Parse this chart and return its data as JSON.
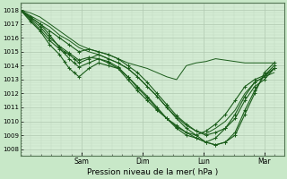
{
  "xlabel": "Pression niveau de la mer( hPa )",
  "background_color": "#c8e8c8",
  "plot_bg_color": "#d4ecd4",
  "grid_major_color": "#b0c8b0",
  "grid_minor_color": "#c0d8c0",
  "line_color": "#1a5c1a",
  "ylim": [
    1007.5,
    1018.5
  ],
  "ytick_labels": [
    1008,
    1009,
    1010,
    1011,
    1012,
    1013,
    1014,
    1015,
    1016,
    1017,
    1018
  ],
  "day_labels": [
    "Sam",
    "Dim",
    "Lun",
    "Mar"
  ],
  "day_positions": [
    0.25,
    0.5,
    0.75,
    1.0
  ],
  "xlim": [
    0.0,
    1.08
  ],
  "lines": [
    {
      "x": [
        0.0,
        0.04,
        0.08,
        0.12,
        0.16,
        0.18,
        0.2,
        0.22,
        0.24,
        0.28,
        0.32,
        0.36,
        0.4,
        0.44,
        0.48,
        0.52,
        0.56,
        0.6,
        0.64,
        0.68,
        0.72,
        0.76,
        0.8,
        0.84,
        0.88,
        0.92,
        0.96,
        1.0,
        1.04
      ],
      "y": [
        1018.0,
        1017.5,
        1017.0,
        1016.2,
        1015.3,
        1015.0,
        1014.8,
        1014.5,
        1014.2,
        1014.5,
        1014.8,
        1014.5,
        1014.2,
        1013.8,
        1013.2,
        1012.5,
        1011.8,
        1011.0,
        1010.2,
        1009.5,
        1009.0,
        1008.5,
        1008.3,
        1008.5,
        1009.0,
        1010.5,
        1012.0,
        1013.5,
        1014.2
      ],
      "marker": true,
      "lw": 0.8
    },
    {
      "x": [
        0.0,
        0.04,
        0.08,
        0.12,
        0.16,
        0.18,
        0.2,
        0.22,
        0.24,
        0.28,
        0.32,
        0.36,
        0.4,
        0.44,
        0.48,
        0.52,
        0.56,
        0.6,
        0.64,
        0.68,
        0.72,
        0.76,
        0.8,
        0.84,
        0.88,
        0.92,
        0.96,
        1.0,
        1.04
      ],
      "y": [
        1018.0,
        1017.2,
        1016.5,
        1015.5,
        1014.8,
        1014.3,
        1013.8,
        1013.5,
        1013.2,
        1013.8,
        1014.2,
        1014.0,
        1013.8,
        1013.2,
        1012.5,
        1011.8,
        1011.0,
        1010.2,
        1009.5,
        1009.0,
        1008.8,
        1008.5,
        1008.3,
        1008.5,
        1009.2,
        1010.8,
        1012.2,
        1013.3,
        1014.0
      ],
      "marker": true,
      "lw": 0.8
    },
    {
      "x": [
        0.0,
        0.04,
        0.08,
        0.12,
        0.16,
        0.2,
        0.24,
        0.28,
        0.32,
        0.36,
        0.4,
        0.44,
        0.48,
        0.52,
        0.56,
        0.6,
        0.64,
        0.68,
        0.72,
        0.76,
        0.8,
        0.84,
        0.88,
        0.92,
        0.96,
        1.0,
        1.04
      ],
      "y": [
        1018.0,
        1017.5,
        1017.0,
        1016.5,
        1016.0,
        1015.5,
        1015.0,
        1015.2,
        1015.0,
        1014.8,
        1014.5,
        1014.0,
        1013.5,
        1012.8,
        1012.0,
        1011.2,
        1010.4,
        1009.8,
        1009.3,
        1009.0,
        1009.2,
        1009.5,
        1010.2,
        1011.5,
        1012.5,
        1013.0,
        1013.8
      ],
      "marker": true,
      "lw": 0.8
    },
    {
      "x": [
        0.0,
        0.04,
        0.08,
        0.12,
        0.16,
        0.2,
        0.24,
        0.28,
        0.32,
        0.36,
        0.4,
        0.44,
        0.48,
        0.52,
        0.56,
        0.6,
        0.64,
        0.68,
        0.72,
        0.76,
        0.8,
        0.84,
        0.88,
        0.92,
        0.96,
        1.0,
        1.04
      ],
      "y": [
        1018.0,
        1017.8,
        1017.5,
        1017.0,
        1016.5,
        1016.0,
        1015.5,
        1015.2,
        1015.0,
        1014.8,
        1014.5,
        1014.2,
        1014.0,
        1013.8,
        1013.5,
        1013.2,
        1013.0,
        1014.0,
        1014.2,
        1014.3,
        1014.5,
        1014.4,
        1014.3,
        1014.2,
        1014.2,
        1014.2,
        1014.2
      ],
      "marker": false,
      "lw": 0.7
    },
    {
      "x": [
        0.0,
        0.04,
        0.08,
        0.12,
        0.16,
        0.2,
        0.24,
        0.28,
        0.32,
        0.36,
        0.4,
        0.44,
        0.48,
        0.52,
        0.56,
        0.6,
        0.64,
        0.68,
        0.72,
        0.76,
        0.8,
        0.84,
        0.88,
        0.92,
        0.96,
        1.0,
        1.04
      ],
      "y": [
        1018.0,
        1017.6,
        1017.2,
        1016.8,
        1016.2,
        1015.8,
        1015.3,
        1015.0,
        1014.8,
        1014.5,
        1014.2,
        1013.8,
        1013.2,
        1012.5,
        1011.8,
        1011.0,
        1010.3,
        1009.7,
        1009.3,
        1009.1,
        1009.5,
        1010.0,
        1010.8,
        1012.0,
        1012.8,
        1013.2,
        1013.5
      ],
      "marker": false,
      "lw": 0.7
    },
    {
      "x": [
        0.0,
        0.04,
        0.08,
        0.12,
        0.16,
        0.18,
        0.2,
        0.22,
        0.24,
        0.28,
        0.32,
        0.36,
        0.4,
        0.44,
        0.48,
        0.52,
        0.56,
        0.6,
        0.64,
        0.68,
        0.72,
        0.76,
        0.8,
        0.84,
        0.88,
        0.92,
        0.96,
        1.0,
        1.04
      ],
      "y": [
        1018.0,
        1017.3,
        1016.6,
        1015.8,
        1015.2,
        1014.9,
        1014.5,
        1014.2,
        1013.9,
        1014.2,
        1014.5,
        1014.2,
        1013.8,
        1013.0,
        1012.2,
        1011.5,
        1010.8,
        1010.2,
        1009.7,
        1009.2,
        1008.8,
        1008.5,
        1008.8,
        1009.5,
        1010.5,
        1011.8,
        1012.8,
        1013.2,
        1013.8
      ],
      "marker": true,
      "lw": 0.8
    },
    {
      "x": [
        0.0,
        0.04,
        0.08,
        0.12,
        0.16,
        0.2,
        0.24,
        0.28,
        0.32,
        0.36,
        0.4,
        0.44,
        0.48,
        0.52,
        0.56,
        0.6,
        0.64,
        0.68,
        0.72,
        0.76,
        0.8,
        0.84,
        0.88,
        0.92,
        0.96,
        1.0,
        1.04
      ],
      "y": [
        1018.0,
        1017.4,
        1016.8,
        1016.0,
        1015.4,
        1014.9,
        1014.4,
        1014.6,
        1014.5,
        1014.3,
        1013.9,
        1013.2,
        1012.4,
        1011.7,
        1010.9,
        1010.2,
        1009.6,
        1009.2,
        1009.0,
        1009.3,
        1009.8,
        1010.5,
        1011.5,
        1012.5,
        1013.0,
        1013.3,
        1013.8
      ],
      "marker": true,
      "lw": 0.8
    }
  ]
}
